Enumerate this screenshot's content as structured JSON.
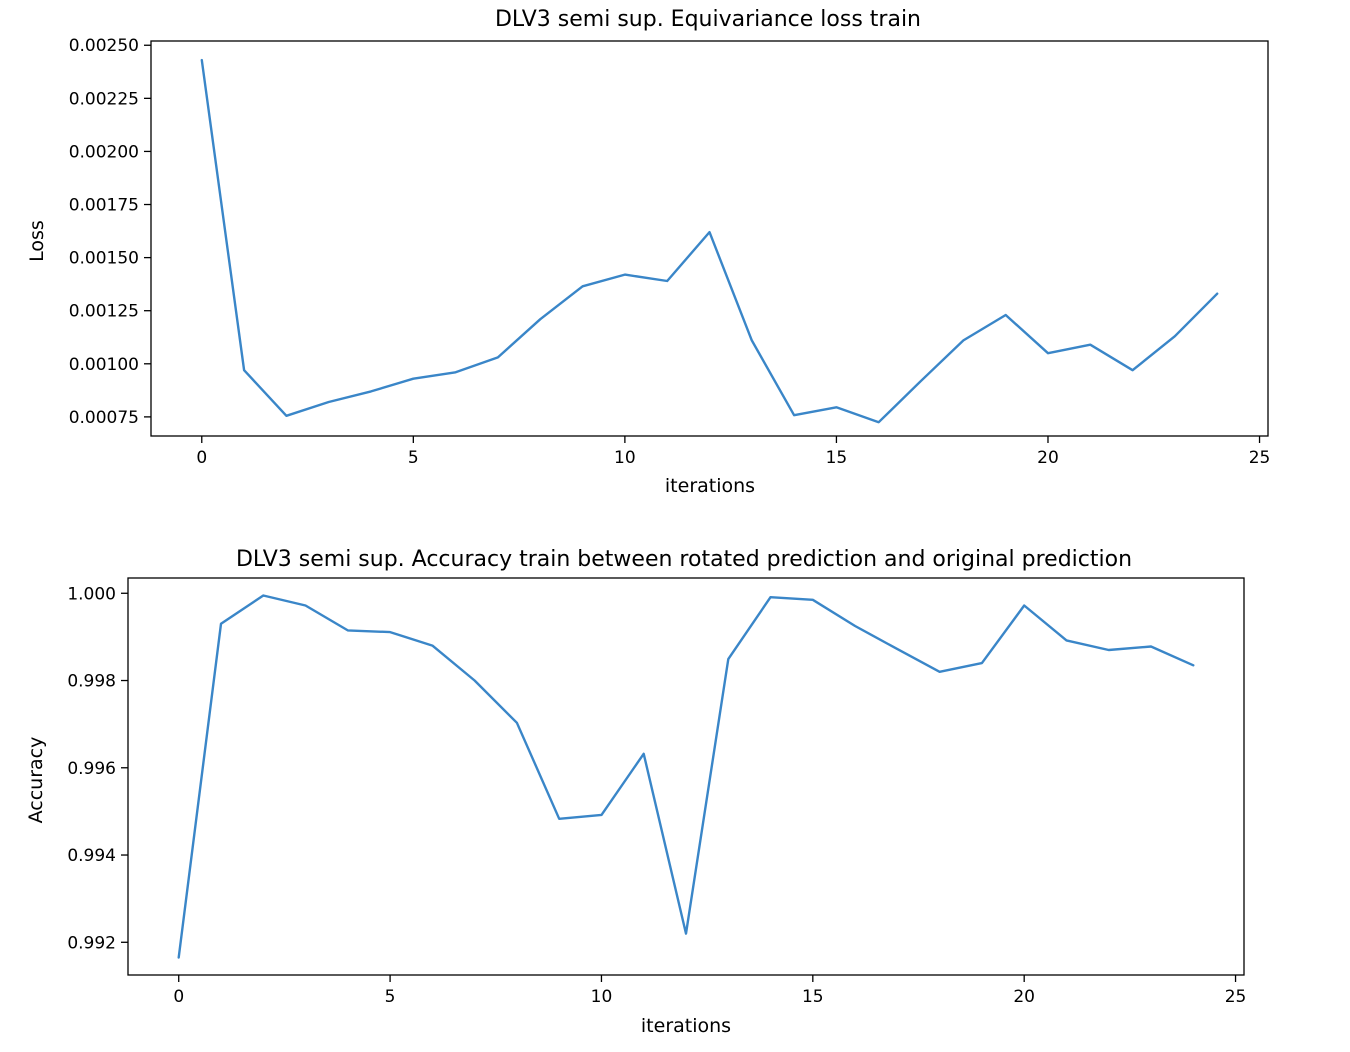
{
  "chart_data": [
    {
      "type": "line",
      "title": "DLV3 semi sup. Equivariance loss train",
      "xlabel": "iterations",
      "ylabel": "Loss",
      "xlim": [
        -1.2,
        25.2
      ],
      "ylim": [
        0.00066,
        0.00252
      ],
      "xticks": [
        0,
        5,
        10,
        15,
        20,
        25
      ],
      "xtick_labels": [
        "0",
        "5",
        "10",
        "15",
        "20",
        "25"
      ],
      "yticks": [
        0.00075,
        0.001,
        0.00125,
        0.0015,
        0.00175,
        0.002,
        0.00225,
        0.0025
      ],
      "ytick_labels": [
        "0.00075",
        "0.00100",
        "0.00125",
        "0.00150",
        "0.00175",
        "0.00200",
        "0.00225",
        "0.00250"
      ],
      "grid": false,
      "series": [
        {
          "color": "#3a86c8",
          "x": [
            0,
            1,
            2,
            3,
            4,
            5,
            6,
            7,
            8,
            9,
            10,
            11,
            12,
            13,
            14,
            15,
            16,
            17,
            18,
            19,
            20,
            21,
            22,
            23,
            24
          ],
          "y": [
            0.00243,
            0.00097,
            0.000755,
            0.00082,
            0.00087,
            0.00093,
            0.00096,
            0.00103,
            0.00121,
            0.001365,
            0.00142,
            0.00139,
            0.00162,
            0.00111,
            0.000758,
            0.000795,
            0.000725,
            0.00092,
            0.00111,
            0.00123,
            0.00105,
            0.00109,
            0.00097,
            0.00113,
            0.00133
          ]
        }
      ]
    },
    {
      "type": "line",
      "title": "DLV3 semi sup. Accuracy train between rotated prediction and original prediction",
      "xlabel": "iterations",
      "ylabel": "Accuracy",
      "xlim": [
        -1.2,
        25.2
      ],
      "ylim": [
        0.99125,
        1.00035
      ],
      "xticks": [
        0,
        5,
        10,
        15,
        20,
        25
      ],
      "xtick_labels": [
        "0",
        "5",
        "10",
        "15",
        "20",
        "25"
      ],
      "yticks": [
        0.992,
        0.994,
        0.996,
        0.998,
        1.0
      ],
      "ytick_labels": [
        "0.992",
        "0.994",
        "0.996",
        "0.998",
        "1.000"
      ],
      "grid": false,
      "series": [
        {
          "color": "#3a86c8",
          "x": [
            0,
            1,
            2,
            3,
            4,
            5,
            6,
            7,
            8,
            9,
            10,
            11,
            12,
            13,
            14,
            15,
            16,
            17,
            18,
            19,
            20,
            21,
            22,
            23,
            24
          ],
          "y": [
            0.99165,
            0.9993,
            0.99995,
            0.99972,
            0.99915,
            0.99911,
            0.9988,
            0.998,
            0.99703,
            0.99483,
            0.99492,
            0.99632,
            0.9922,
            0.99849,
            0.99991,
            0.99985,
            0.99925,
            0.99872,
            0.9982,
            0.9984,
            0.99972,
            0.99892,
            0.9987,
            0.99878,
            0.99835
          ]
        }
      ]
    }
  ]
}
